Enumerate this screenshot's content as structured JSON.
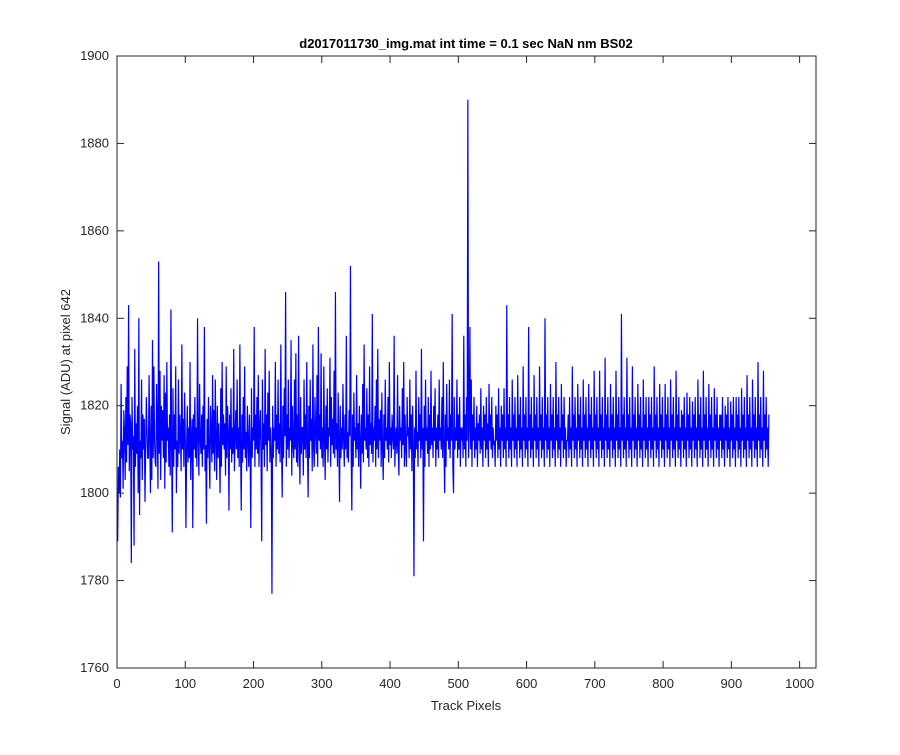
{
  "chart_data": {
    "type": "line",
    "title": "d2017011730_img.mat int time = 0.1 sec  NaN nm BS02",
    "xlabel": "Track Pixels",
    "ylabel": "Signal (ADU) at pixel 642",
    "xlim": [
      0,
      1024
    ],
    "ylim": [
      1760,
      1900
    ],
    "xticks": [
      "0",
      "100",
      "200",
      "300",
      "400",
      "500",
      "600",
      "700",
      "800",
      "900",
      "1000"
    ],
    "yticks": [
      "1760",
      "1780",
      "1800",
      "1820",
      "1840",
      "1860",
      "1880",
      "1900"
    ],
    "grid": false,
    "legend": "none",
    "series": [
      {
        "color": "#0000ff",
        "x_start": 1,
        "x_step": 1,
        "values": [
          1789,
          1806,
          1800,
          1810,
          1799,
          1825,
          1808,
          1812,
          1801,
          1819,
          1814,
          1803,
          1822,
          1807,
          1829,
          1811,
          1843,
          1805,
          1818,
          1816,
          1784,
          1822,
          1810,
          1813,
          1788,
          1833,
          1806,
          1816,
          1809,
          1820,
          1800,
          1840,
          1795,
          1812,
          1808,
          1826,
          1803,
          1818,
          1810,
          1817,
          1798,
          1810,
          1822,
          1814,
          1808,
          1808,
          1827,
          1812,
          1800,
          1820,
          1803,
          1835,
          1808,
          1829,
          1812,
          1807,
          1806,
          1825,
          1815,
          1801,
          1853,
          1809,
          1828,
          1803,
          1820,
          1812,
          1819,
          1808,
          1827,
          1801,
          1823,
          1807,
          1830,
          1812,
          1815,
          1806,
          1818,
          1804,
          1842,
          1811,
          1791,
          1824,
          1806,
          1818,
          1810,
          1829,
          1800,
          1812,
          1806,
          1826,
          1809,
          1818,
          1813,
          1805,
          1834,
          1810,
          1817,
          1806,
          1823,
          1813,
          1792,
          1811,
          1820,
          1807,
          1815,
          1808,
          1830,
          1803,
          1812,
          1817,
          1792,
          1818,
          1810,
          1822,
          1808,
          1815,
          1806,
          1840,
          1812,
          1804,
          1825,
          1812,
          1809,
          1818,
          1806,
          1820,
          1810,
          1838,
          1805,
          1811,
          1793,
          1817,
          1808,
          1822,
          1810,
          1801,
          1820,
          1814,
          1807,
          1827,
          1809,
          1819,
          1805,
          1826,
          1812,
          1803,
          1820,
          1808,
          1816,
          1810,
          1800,
          1824,
          1806,
          1830,
          1811,
          1818,
          1810,
          1816,
          1804,
          1829,
          1808,
          1820,
          1814,
          1796,
          1818,
          1810,
          1824,
          1807,
          1815,
          1809,
          1833,
          1805,
          1812,
          1819,
          1810,
          1826,
          1808,
          1815,
          1806,
          1834,
          1811,
          1796,
          1818,
          1807,
          1822,
          1810,
          1829,
          1808,
          1814,
          1805,
          1820,
          1812,
          1806,
          1818,
          1810,
          1792,
          1824,
          1808,
          1815,
          1812,
          1838,
          1806,
          1818,
          1810,
          1822,
          1809,
          1827,
          1806,
          1815,
          1819,
          1808,
          1789,
          1826,
          1810,
          1816,
          1806,
          1833,
          1811,
          1818,
          1805,
          1823,
          1812,
          1828,
          1807,
          1815,
          1810,
          1777,
          1820,
          1808,
          1815,
          1812,
          1830,
          1806,
          1818,
          1810,
          1826,
          1809,
          1816,
          1807,
          1834,
          1811,
          1799,
          1820,
          1808,
          1824,
          1813,
          1846,
          1806,
          1818,
          1810,
          1826,
          1808,
          1815,
          1812,
          1835,
          1804,
          1820,
          1811,
          1808,
          1826,
          1810,
          1832,
          1807,
          1818,
          1806,
          1836,
          1812,
          1802,
          1822,
          1809,
          1815,
          1815,
          1804,
          1826,
          1810,
          1818,
          1808,
          1830,
          1811,
          1799,
          1820,
          1808,
          1826,
          1812,
          1817,
          1805,
          1834,
          1810,
          1806,
          1822,
          1814,
          1809,
          1827,
          1806,
          1838,
          1812,
          1818,
          1810,
          1832,
          1808,
          1815,
          1806,
          1829,
          1812,
          1803,
          1820,
          1810,
          1824,
          1807,
          1815,
          1813,
          1831,
          1806,
          1822,
          1811,
          1817,
          1809,
          1828,
          1808,
          1846,
          1810,
          1816,
          1806,
          1823,
          1812,
          1798,
          1820,
          1808,
          1815,
          1810,
          1825,
          1812,
          1806,
          1818,
          1810,
          1836,
          1808,
          1814,
          1807,
          1819,
          1813,
          1852,
          1810,
          1796,
          1818,
          1806,
          1823,
          1812,
          1815,
          1808,
          1827,
          1810,
          1816,
          1806,
          1820,
          1812,
          1801,
          1818,
          1809,
          1825,
          1807,
          1834,
          1812,
          1815,
          1810,
          1824,
          1808,
          1818,
          1806,
          1829,
          1811,
          1816,
          1809,
          1841,
          1807,
          1815,
          1812,
          1820,
          1806,
          1826,
          1810,
          1833,
          1808,
          1817,
          1812,
          1819,
          1806,
          1823,
          1810,
          1803,
          1818,
          1808,
          1826,
          1812,
          1815,
          1810,
          1822,
          1807,
          1830,
          1811,
          1815,
          1808,
          1818,
          1813,
          1810,
          1836,
          1806,
          1812,
          1815,
          1809,
          1827,
          1810,
          1804,
          1820,
          1812,
          1815,
          1808,
          1824,
          1811,
          1830,
          1806,
          1818,
          1810,
          1806,
          1822,
          1813,
          1815,
          1808,
          1826,
          1810,
          1818,
          1805,
          1820,
          1812,
          1781,
          1815,
          1808,
          1828,
          1810,
          1814,
          1806,
          1822,
          1812,
          1818,
          1808,
          1833,
          1810,
          1815,
          1789,
          1820,
          1806,
          1826,
          1812,
          1815,
          1809,
          1822,
          1806,
          1818,
          1810,
          1828,
          1811,
          1815,
          1808,
          1820,
          1812,
          1824,
          1806,
          1815,
          1810,
          1818,
          1808,
          1826,
          1812,
          1815,
          1810,
          1822,
          1808,
          1830,
          1811,
          1800,
          1818,
          1806,
          1825,
          1812,
          1815,
          1810,
          1826,
          1808,
          1818,
          1812,
          1841,
          1806,
          1800,
          1822,
          1810,
          1815,
          1812,
          1826,
          1808,
          1818,
          1810,
          1822,
          1806,
          1815,
          1812,
          1815,
          1808,
          1836,
          1810,
          1818,
          1806,
          1822,
          1812,
          1890,
          1808,
          1815,
          1838,
          1810,
          1826,
          1806,
          1818,
          1812,
          1822,
          1808,
          1815,
          1810,
          1820,
          1806,
          1816,
          1812,
          1818,
          1809,
          1824,
          1810,
          1815,
          1806,
          1820,
          1812,
          1818,
          1808,
          1822,
          1810,
          1816,
          1806,
          1825,
          1812,
          1818,
          1810,
          1822,
          1808,
          1815,
          1811,
          1812,
          1806,
          1820,
          1812,
          1818,
          1808,
          1824,
          1810,
          1815,
          1806,
          1820,
          1812,
          1818,
          1808,
          1824,
          1810,
          1815,
          1806,
          1843,
          1812,
          1818,
          1808,
          1822,
          1810,
          1815,
          1806,
          1826,
          1812,
          1818,
          1808,
          1822,
          1810,
          1815,
          1806,
          1827,
          1812,
          1818,
          1808,
          1822,
          1810,
          1815,
          1806,
          1829,
          1812,
          1818,
          1808,
          1822,
          1810,
          1815,
          1806,
          1838,
          1812,
          1818,
          1808,
          1822,
          1810,
          1815,
          1806,
          1827,
          1812,
          1818,
          1808,
          1822,
          1810,
          1815,
          1806,
          1829,
          1812,
          1818,
          1808,
          1822,
          1810,
          1815,
          1806,
          1840,
          1812,
          1818,
          1808,
          1822,
          1810,
          1815,
          1806,
          1825,
          1812,
          1818,
          1808,
          1822,
          1810,
          1815,
          1806,
          1830,
          1812,
          1818,
          1808,
          1822,
          1810,
          1815,
          1806,
          1825,
          1812,
          1818,
          1808,
          1822,
          1810,
          1815,
          1806,
          1812,
          1812,
          1818,
          1808,
          1822,
          1810,
          1815,
          1806,
          1829,
          1812,
          1818,
          1808,
          1822,
          1810,
          1815,
          1806,
          1825,
          1812,
          1818,
          1808,
          1822,
          1810,
          1815,
          1806,
          1826,
          1812,
          1818,
          1808,
          1822,
          1810,
          1815,
          1806,
          1825,
          1812,
          1818,
          1808,
          1822,
          1810,
          1815,
          1806,
          1828,
          1812,
          1818,
          1808,
          1822,
          1810,
          1815,
          1806,
          1828,
          1812,
          1818,
          1808,
          1822,
          1810,
          1815,
          1806,
          1831,
          1812,
          1818,
          1808,
          1822,
          1810,
          1815,
          1806,
          1825,
          1812,
          1818,
          1808,
          1822,
          1810,
          1815,
          1806,
          1828,
          1812,
          1818,
          1808,
          1822,
          1810,
          1815,
          1806,
          1841,
          1812,
          1818,
          1808,
          1822,
          1810,
          1815,
          1806,
          1831,
          1812,
          1818,
          1808,
          1822,
          1810,
          1815,
          1806,
          1829,
          1812,
          1818,
          1808,
          1822,
          1810,
          1815,
          1806,
          1825,
          1812,
          1818,
          1808,
          1822,
          1810,
          1815,
          1806,
          1826,
          1812,
          1818,
          1808,
          1822,
          1810,
          1815,
          1806,
          1822,
          1812,
          1818,
          1808,
          1822,
          1810,
          1815,
          1806,
          1829,
          1812,
          1818,
          1808,
          1822,
          1810,
          1815,
          1806,
          1825,
          1812,
          1818,
          1808,
          1822,
          1810,
          1815,
          1806,
          1825,
          1812,
          1818,
          1808,
          1822,
          1810,
          1815,
          1806,
          1826,
          1812,
          1818,
          1808,
          1822,
          1810,
          1815,
          1806,
          1828,
          1812,
          1818,
          1808,
          1822,
          1810,
          1815,
          1806,
          1819,
          1812,
          1818,
          1808,
          1822,
          1810,
          1815,
          1806,
          1823,
          1812,
          1818,
          1808,
          1822,
          1810,
          1815,
          1806,
          1821,
          1812,
          1818,
          1808,
          1822,
          1810,
          1815,
          1806,
          1826,
          1812,
          1818,
          1808,
          1822,
          1810,
          1815,
          1806,
          1828,
          1812,
          1818,
          1808,
          1822,
          1810,
          1815,
          1806,
          1825,
          1812,
          1818,
          1808,
          1822,
          1810,
          1815,
          1806,
          1824,
          1812,
          1818,
          1808,
          1822,
          1810,
          1815,
          1806,
          1818,
          1812,
          1818,
          1808,
          1822,
          1810,
          1815,
          1806,
          1820,
          1812,
          1818,
          1808,
          1822,
          1810,
          1815,
          1806,
          1821,
          1812,
          1818,
          1808,
          1822,
          1810,
          1815,
          1806,
          1822,
          1812,
          1818,
          1808,
          1822,
          1810,
          1815,
          1806,
          1824,
          1812,
          1818,
          1808,
          1822,
          1810,
          1815,
          1806,
          1827,
          1812,
          1818,
          1808,
          1822,
          1810,
          1815,
          1806,
          1826,
          1812,
          1818,
          1808,
          1822,
          1810,
          1815,
          1806,
          1830,
          1812,
          1818,
          1808,
          1822,
          1810,
          1815,
          1806,
          1828,
          1812,
          1818,
          1808,
          1822,
          1810,
          1815,
          1806,
          1818
        ]
      }
    ]
  }
}
